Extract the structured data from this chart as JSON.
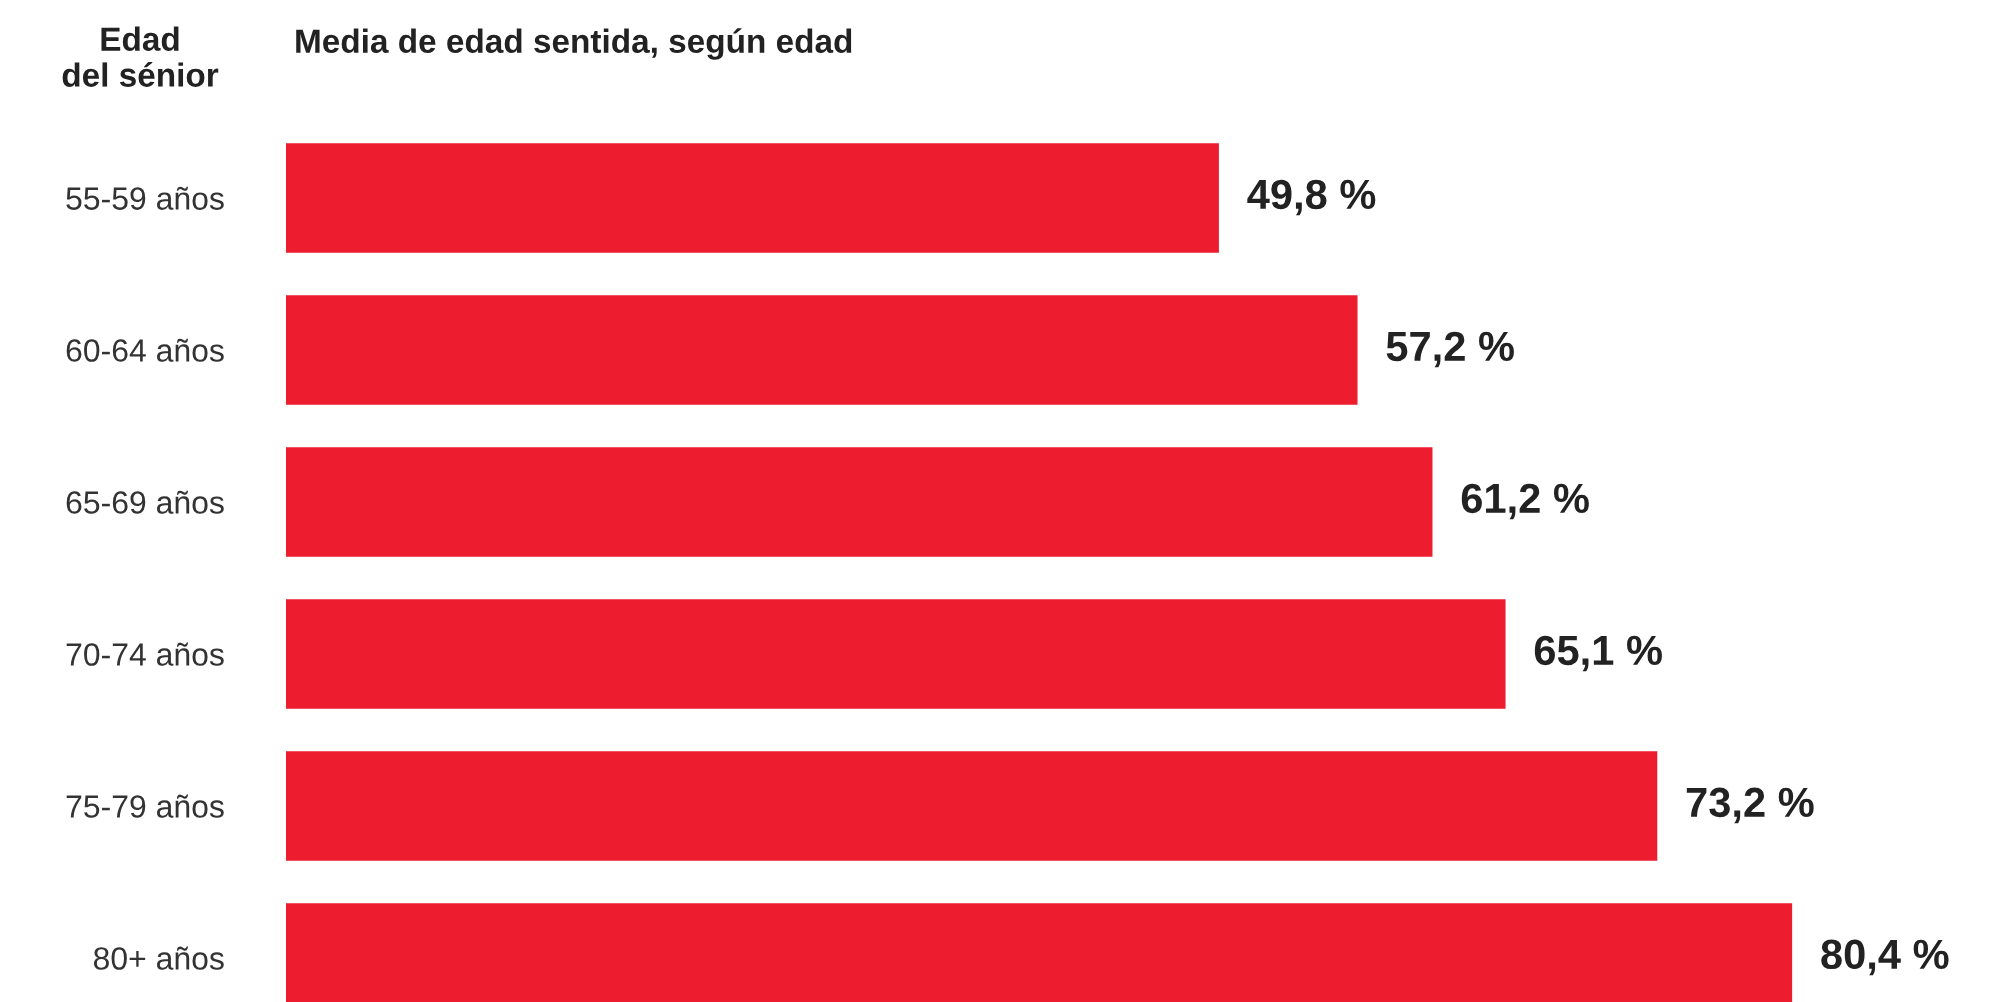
{
  "chart_data": {
    "type": "bar",
    "orientation": "horizontal",
    "title": "Media de edad sentida, según edad",
    "ylabel": "Edad\ndel sénior",
    "categories": [
      "55-59 años",
      "60-64 años",
      "65-69 años",
      "70-74 años",
      "75-79 años",
      "80+ años"
    ],
    "values": [
      49.8,
      57.2,
      61.2,
      65.1,
      73.2,
      80.4
    ],
    "value_labels": [
      "49,8 %",
      "57,2 %",
      "61,2 %",
      "65,1 %",
      "73,2 %",
      "80,4 %"
    ],
    "color": "#ed1c2e",
    "tick_labels": "y",
    "grid": false,
    "legend": false
  }
}
